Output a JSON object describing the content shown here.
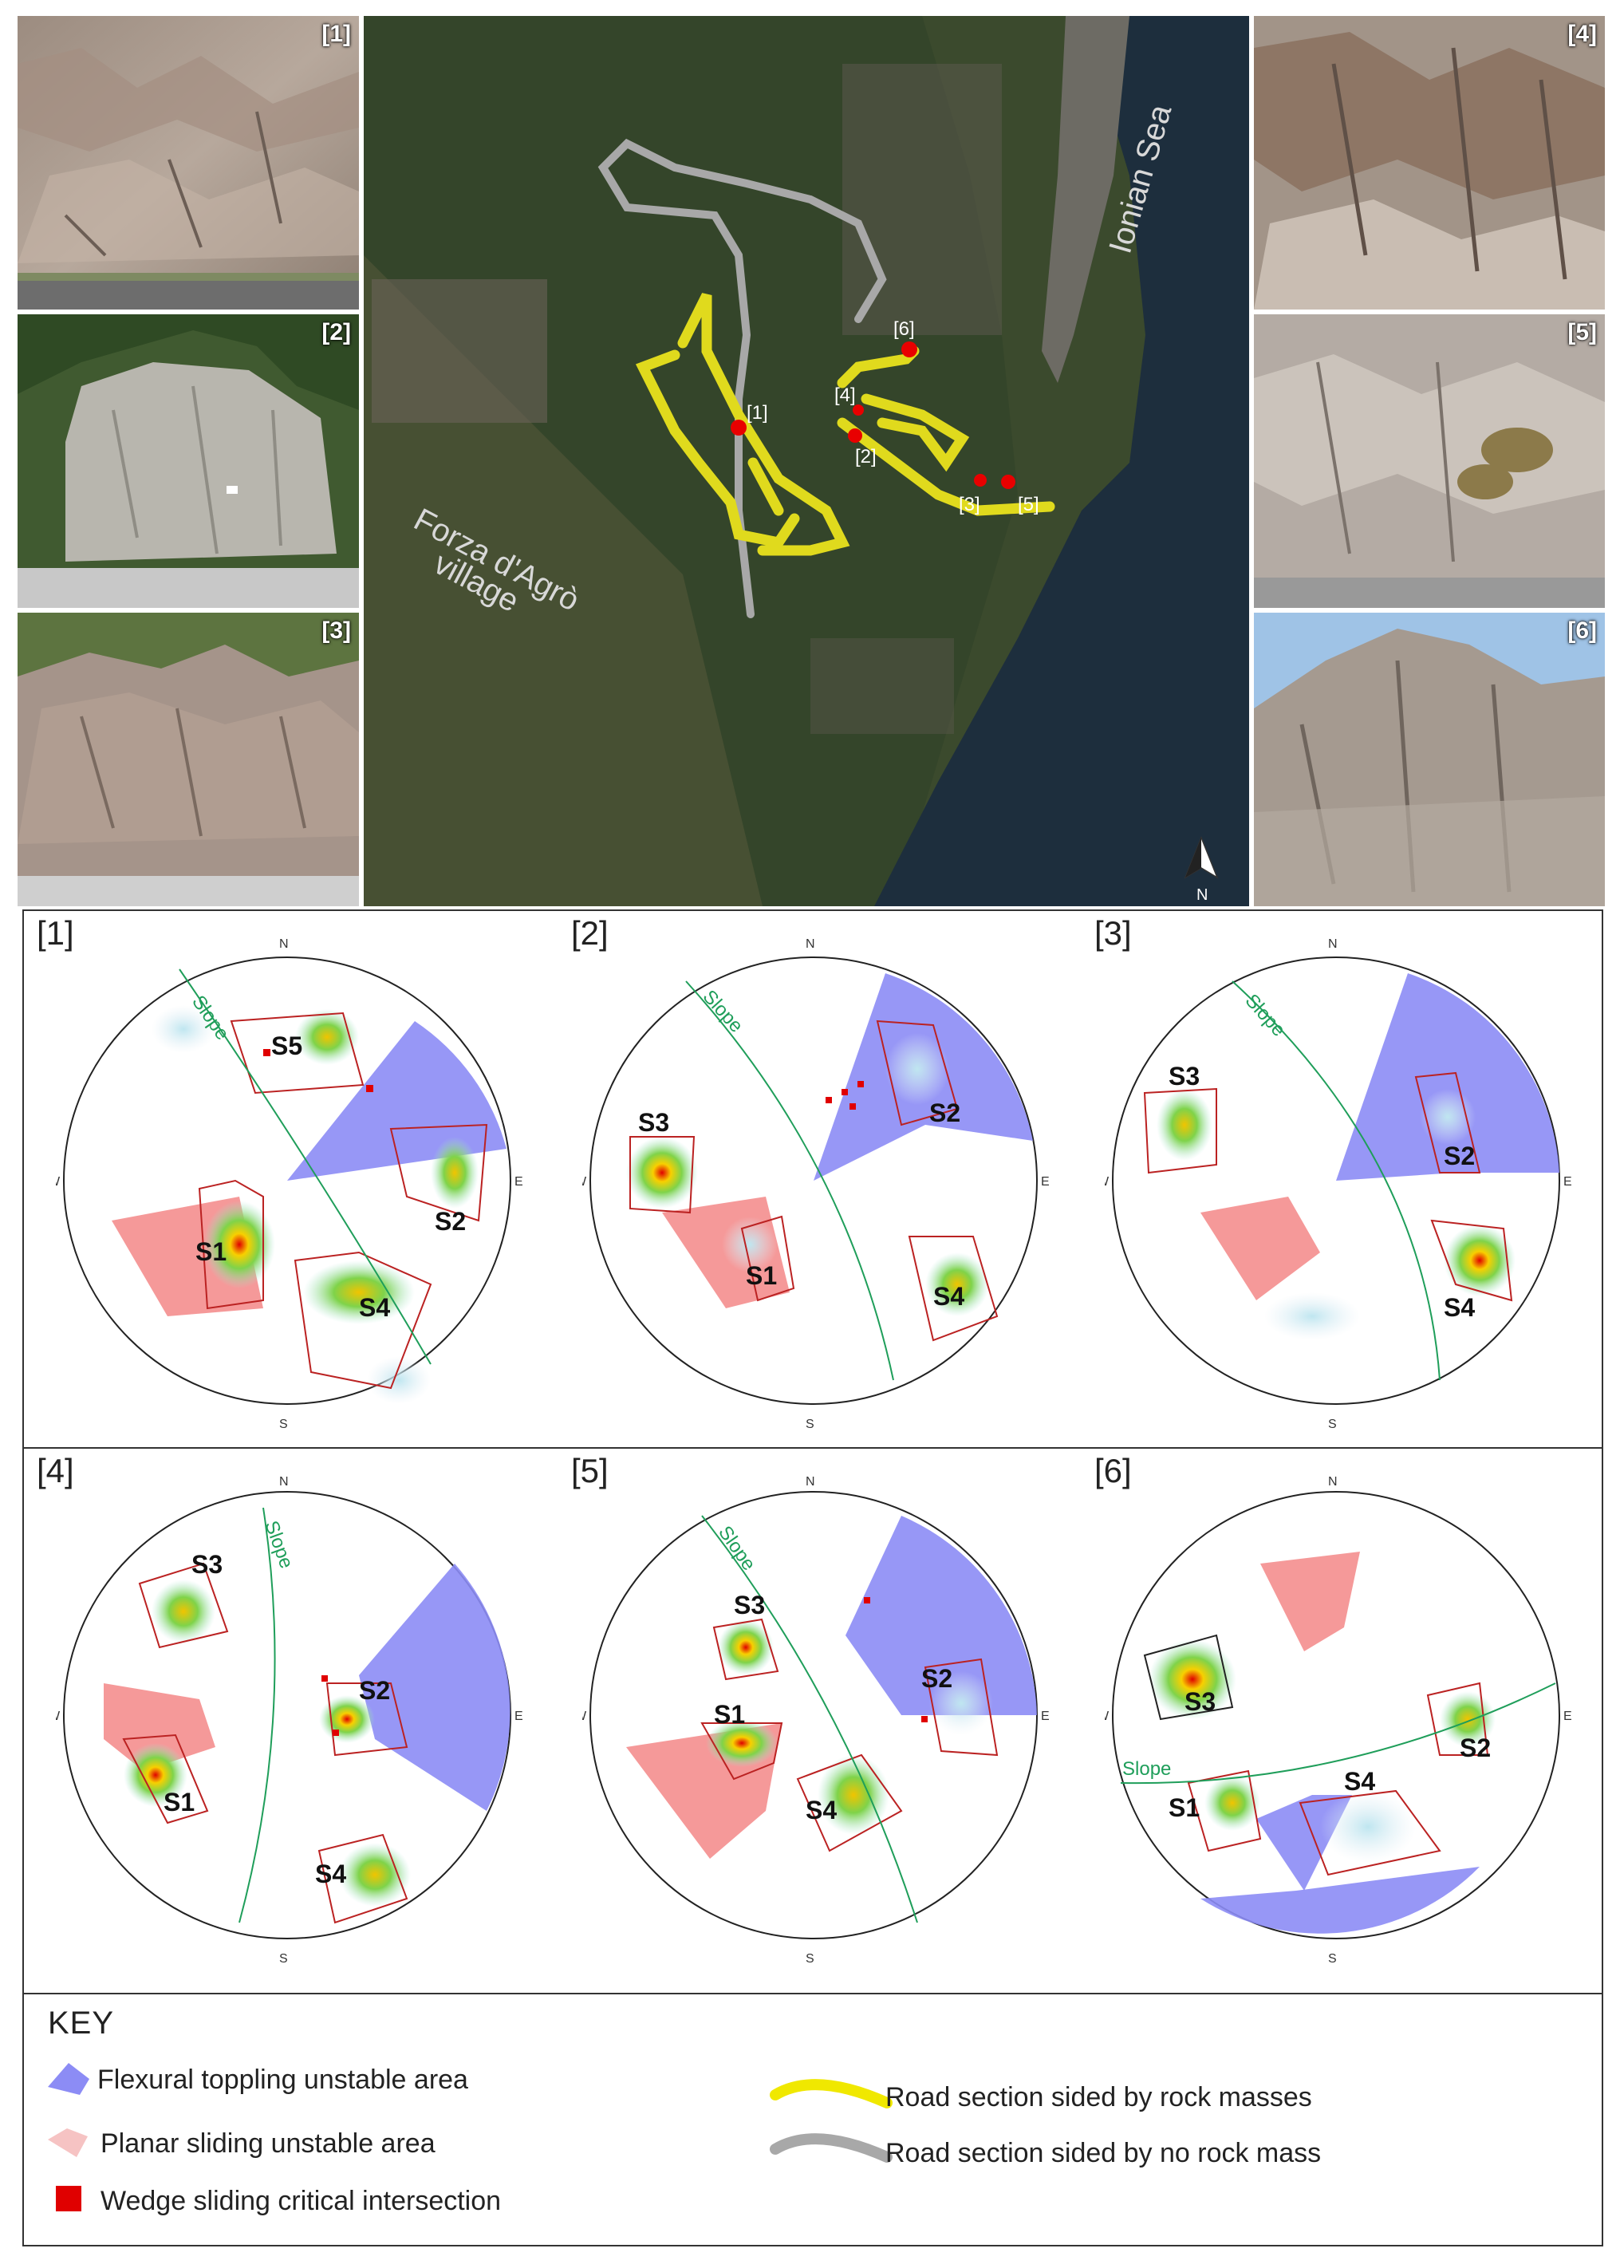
{
  "photos": [
    {
      "id": "1",
      "label": "[1]"
    },
    {
      "id": "2",
      "label": "[2]"
    },
    {
      "id": "3",
      "label": "[3]"
    },
    {
      "id": "4",
      "label": "[4]"
    },
    {
      "id": "5",
      "label": "[5]"
    },
    {
      "id": "6",
      "label": "[6]"
    }
  ],
  "map": {
    "sea_label": "Ionian Sea",
    "village_line1": "Forza d'Agrò",
    "village_line2": "village",
    "north_label": "N",
    "sites": [
      "[1]",
      "[2]",
      "[3]",
      "[4]",
      "[5]",
      "[6]"
    ]
  },
  "stereonets": [
    {
      "id": "1",
      "label": "[1]",
      "slope_label": "Slope",
      "sets": [
        "S1",
        "S2",
        "S4",
        "S5"
      ]
    },
    {
      "id": "2",
      "label": "[2]",
      "slope_label": "Slope",
      "sets": [
        "S1",
        "S2",
        "S3",
        "S4"
      ]
    },
    {
      "id": "3",
      "label": "[3]",
      "slope_label": "Slope",
      "sets": [
        "S2",
        "S3",
        "S4"
      ]
    },
    {
      "id": "4",
      "label": "[4]",
      "slope_label": "Slope",
      "sets": [
        "S1",
        "S2",
        "S3",
        "S4"
      ]
    },
    {
      "id": "5",
      "label": "[5]",
      "slope_label": "Slope",
      "sets": [
        "S1",
        "S2",
        "S3",
        "S4"
      ]
    },
    {
      "id": "6",
      "label": "[6]",
      "slope_label": "Slope",
      "sets": [
        "S1",
        "S2",
        "S3",
        "S4"
      ]
    }
  ],
  "compass": {
    "n": "N",
    "s": "S",
    "e": "E",
    "w": "W"
  },
  "key": {
    "title": "KEY",
    "flexural": "Flexural toppling unstable area",
    "planar": "Planar sliding unstable area",
    "wedge": "Wedge sliding critical intersection",
    "road_rock": "Road section sided by rock masses",
    "road_norock": "Road section sided by no rock mass"
  },
  "colors": {
    "flexural": "#8c8cf5",
    "planar": "#f28080",
    "wedge": "#e00000",
    "road_rock": "#e8e21e",
    "road_norock": "#a8a8a8",
    "slope": "#1f9e5a"
  }
}
